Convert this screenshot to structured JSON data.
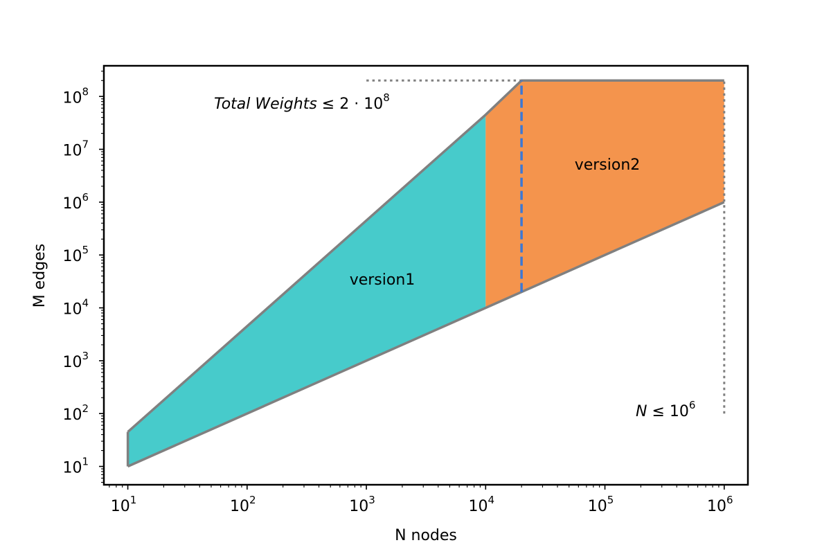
{
  "chart_data": {
    "type": "area",
    "xscale": "log",
    "yscale": "log",
    "xlabel": "N nodes",
    "ylabel": "M edges",
    "xlim": [
      6.3,
      1580000
    ],
    "ylim": [
      4.5,
      380000000
    ],
    "xticks": [
      {
        "base": "10",
        "exp": "1",
        "value": 10
      },
      {
        "base": "10",
        "exp": "2",
        "value": 100
      },
      {
        "base": "10",
        "exp": "3",
        "value": 1000
      },
      {
        "base": "10",
        "exp": "4",
        "value": 10000
      },
      {
        "base": "10",
        "exp": "5",
        "value": 100000
      },
      {
        "base": "10",
        "exp": "6",
        "value": 1000000
      }
    ],
    "yticks": [
      {
        "base": "10",
        "exp": "1",
        "value": 10
      },
      {
        "base": "10",
        "exp": "2",
        "value": 100
      },
      {
        "base": "10",
        "exp": "3",
        "value": 1000
      },
      {
        "base": "10",
        "exp": "4",
        "value": 10000
      },
      {
        "base": "10",
        "exp": "5",
        "value": 100000
      },
      {
        "base": "10",
        "exp": "6",
        "value": 1000000
      },
      {
        "base": "10",
        "exp": "7",
        "value": 10000000
      },
      {
        "base": "10",
        "exp": "8",
        "value": 100000000
      }
    ],
    "regions": [
      {
        "name": "version1",
        "color": "#47cbcb",
        "polygon": [
          [
            10,
            10
          ],
          [
            10,
            45
          ],
          [
            10000,
            45000000
          ],
          [
            10000,
            10000
          ]
        ]
      },
      {
        "name": "version2",
        "color": "#f4944d",
        "polygon": [
          [
            10000,
            10000
          ],
          [
            10000,
            45000000
          ],
          [
            20000,
            200000000
          ],
          [
            1000000,
            200000000
          ],
          [
            1000000,
            1000000
          ],
          [
            20000,
            20000
          ]
        ]
      }
    ],
    "boundary_lines": [
      {
        "color": "#808080",
        "style": "solid",
        "points": [
          [
            10,
            10
          ],
          [
            20000,
            20000
          ],
          [
            1000000,
            1000000
          ]
        ]
      },
      {
        "color": "#808080",
        "style": "solid",
        "points": [
          [
            10,
            45
          ],
          [
            10000,
            45000000
          ],
          [
            20000,
            200000000
          ],
          [
            1000000,
            200000000
          ]
        ]
      },
      {
        "color": "#808080",
        "style": "solid",
        "points": [
          [
            10,
            10
          ],
          [
            10,
            45
          ]
        ]
      },
      {
        "color": "#808080",
        "style": "dotted",
        "points": [
          [
            1000,
            200000000
          ],
          [
            20000,
            200000000
          ]
        ]
      },
      {
        "color": "#808080",
        "style": "dotted",
        "points": [
          [
            1000000,
            100
          ],
          [
            1000000,
            200000000
          ]
        ]
      },
      {
        "color": "#3a78d6",
        "style": "dashed",
        "points": [
          [
            20000,
            20000
          ],
          [
            20000,
            200000000
          ]
        ]
      }
    ],
    "annotations": [
      {
        "id": "weights",
        "text_italic": "Total  Weights",
        "text_rest": " ≤ 2 · 10",
        "sup": "8"
      },
      {
        "id": "nodes",
        "text_italic": "N",
        "text_rest": " ≤ 10",
        "sup": "6"
      }
    ]
  }
}
